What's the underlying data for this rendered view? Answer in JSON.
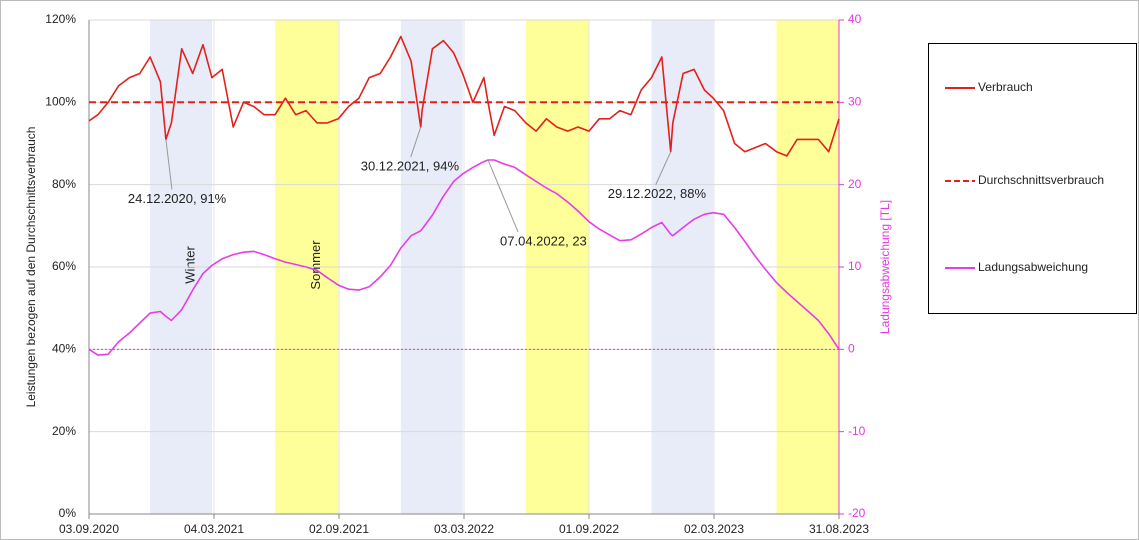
{
  "chart_data": {
    "type": "line",
    "y_label": "Leistungen bezogen auf den Durchschnittsverbrauch",
    "y2_label": "Ladungsabweichung [TL]",
    "x": [
      "03.09.2020",
      "16.09.2020",
      "01.10.2020",
      "16.10.2020",
      "01.11.2020",
      "16.11.2020",
      "01.12.2020",
      "16.12.2020",
      "24.12.2020",
      "01.01.2021",
      "16.01.2021",
      "01.02.2021",
      "16.02.2021",
      "01.03.2021",
      "16.03.2021",
      "01.04.2021",
      "16.04.2021",
      "01.05.2021",
      "16.05.2021",
      "01.06.2021",
      "16.06.2021",
      "01.07.2021",
      "16.07.2021",
      "01.08.2021",
      "16.08.2021",
      "01.09.2021",
      "16.09.2021",
      "01.10.2021",
      "16.10.2021",
      "01.11.2021",
      "16.11.2021",
      "01.12.2021",
      "16.12.2021",
      "30.12.2021",
      "01.01.2022",
      "16.01.2022",
      "01.02.2022",
      "16.02.2022",
      "01.03.2022",
      "16.03.2022",
      "01.04.2022",
      "07.04.2022",
      "16.04.2022",
      "01.05.2022",
      "16.05.2022",
      "01.06.2022",
      "16.06.2022",
      "01.07.2022",
      "16.07.2022",
      "01.08.2022",
      "16.08.2022",
      "01.09.2022",
      "16.09.2022",
      "01.10.2022",
      "16.10.2022",
      "01.11.2022",
      "16.11.2022",
      "01.12.2022",
      "16.12.2022",
      "29.12.2022",
      "01.01.2023",
      "16.01.2023",
      "01.02.2023",
      "16.02.2023",
      "01.03.2023",
      "16.03.2023",
      "01.04.2023",
      "16.04.2023",
      "01.05.2023",
      "16.05.2023",
      "01.06.2023",
      "16.06.2023",
      "01.07.2023",
      "16.07.2023",
      "01.08.2023",
      "16.08.2023",
      "31.08.2023"
    ],
    "series": [
      {
        "name": "Verbrauch",
        "color": "#e3201c",
        "axis": "y",
        "values": [
          95.5,
          97,
          100,
          104,
          106,
          107,
          111,
          105,
          91,
          95,
          113,
          107,
          114,
          106,
          108,
          94,
          100,
          99,
          97,
          97,
          101,
          97,
          98,
          95,
          95,
          96,
          99,
          101,
          106,
          107,
          111,
          116,
          110,
          94,
          98,
          113,
          115,
          112,
          107,
          100,
          106,
          100,
          92,
          99,
          98,
          95,
          93,
          96,
          94,
          93,
          94,
          93,
          96,
          96,
          98,
          97,
          103,
          106,
          111,
          88,
          95,
          107,
          108,
          103,
          101,
          98,
          90,
          88,
          89,
          90,
          88,
          87,
          91,
          91,
          91,
          88,
          96
        ]
      },
      {
        "name": "Durchschnittsverbrauch",
        "color": "#e3201c",
        "axis": "y",
        "dashed": true,
        "x": [
          "03.09.2020",
          "31.08.2023"
        ],
        "values": [
          100,
          100
        ]
      },
      {
        "name": "Ladungsabweichung",
        "color": "#e83ce8",
        "axis": "y2",
        "values": [
          0,
          -0.7,
          -0.6,
          0.9,
          2,
          3.2,
          4.4,
          4.6,
          4,
          3.5,
          4.8,
          7.2,
          9.2,
          10.2,
          11,
          11.5,
          11.8,
          11.9,
          11.5,
          11,
          10.6,
          10.3,
          10,
          9.6,
          8.7,
          7.8,
          7.3,
          7.2,
          7.6,
          8.8,
          10.2,
          12.3,
          13.8,
          14.4,
          14.6,
          16.3,
          18.6,
          20.4,
          21.3,
          22.1,
          22.8,
          23,
          23,
          22.5,
          22.1,
          21.2,
          20.4,
          19.6,
          18.9,
          17.9,
          16.8,
          15.5,
          14.6,
          13.9,
          13.2,
          13.3,
          14,
          14.8,
          15.4,
          14,
          13.8,
          14.8,
          15.8,
          16.4,
          16.6,
          16.4,
          14.8,
          13.1,
          11.3,
          9.7,
          8.1,
          6.9,
          5.8,
          4.7,
          3.5,
          1.9,
          0
        ]
      }
    ],
    "xlim": [
      "03.09.2020",
      "31.08.2023"
    ],
    "xticks": [
      "03.09.2020",
      "04.03.2021",
      "02.09.2021",
      "03.03.2022",
      "01.09.2022",
      "02.03.2023",
      "31.08.2023"
    ],
    "ylim": [
      0,
      120
    ],
    "yticks": [
      {
        "value": 0,
        "label": "0%"
      },
      {
        "value": 20,
        "label": "20%"
      },
      {
        "value": 40,
        "label": "40%"
      },
      {
        "value": 60,
        "label": "60%"
      },
      {
        "value": 80,
        "label": "80%"
      },
      {
        "value": 100,
        "label": "100%"
      },
      {
        "value": 120,
        "label": "120%"
      }
    ],
    "y2lim": [
      -20,
      40
    ],
    "y2ticks": [
      -20,
      -10,
      0,
      10,
      20,
      30,
      40
    ],
    "y2_color": "#e03ae0",
    "y2_zero_line": true,
    "grid": true,
    "legend": "right",
    "bands": [
      {
        "from": "01.12.2020",
        "to": "01.03.2021",
        "color": "#e8ecf8",
        "label": "Winter"
      },
      {
        "from": "01.06.2021",
        "to": "01.09.2021",
        "color": "#ffff99",
        "label": "Sommer"
      },
      {
        "from": "01.12.2021",
        "to": "01.03.2022",
        "color": "#e8ecf8"
      },
      {
        "from": "01.06.2022",
        "to": "01.09.2022",
        "color": "#ffff99"
      },
      {
        "from": "01.12.2022",
        "to": "01.03.2023",
        "color": "#e8ecf8"
      },
      {
        "from": "01.06.2023",
        "to": "31.08.2023",
        "color": "#ffff99"
      }
    ],
    "annotations": [
      {
        "text": "24.12.2020, 91%",
        "x": "24.12.2020",
        "value": 91,
        "axis": "y"
      },
      {
        "text": "30.12.2021, 94%",
        "x": "30.12.2021",
        "value": 94,
        "axis": "y"
      },
      {
        "text": "07.04.2022, 23",
        "x": "07.04.2022",
        "value": 23,
        "axis": "y2"
      },
      {
        "text": "29.12.2022, 88%",
        "x": "29.12.2022",
        "value": 88,
        "axis": "y"
      }
    ]
  }
}
